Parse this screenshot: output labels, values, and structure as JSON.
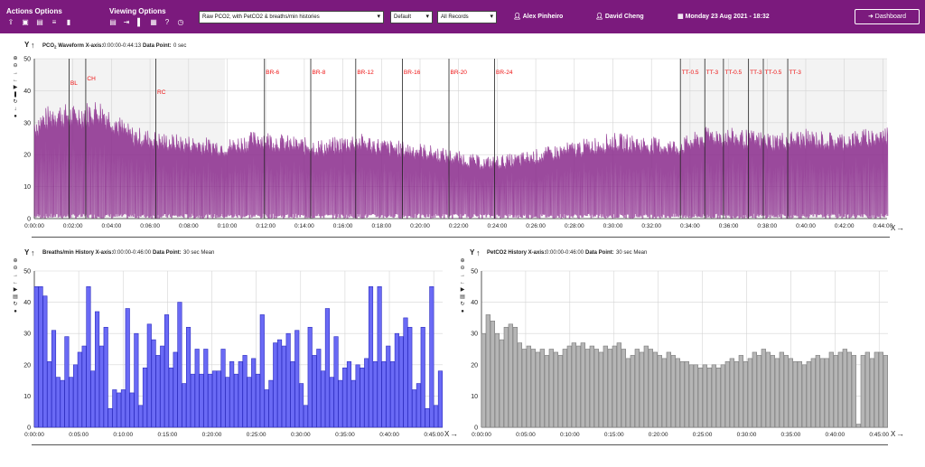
{
  "topbar": {
    "actions_label": "Actions Options",
    "viewing_label": "Viewing Options",
    "action_icons": [
      "upload-icon",
      "save-icon",
      "document-icon",
      "sliders-icon",
      "bookmark-icon"
    ],
    "viewing_icons": [
      "file-icon",
      "arrow-in-icon",
      "bar-icon",
      "grid-icon",
      "help-icon",
      "clock-icon"
    ],
    "view_select": "Raw PCO2, with PetCO2 & breaths/min histories",
    "mode_select": "Default",
    "records_select": "All Records",
    "patient": "Alex Pinheiro",
    "clinician": "David Cheng",
    "date": "Monday 23 Aug 2021 - 18:32",
    "dashboard_label": "Dashboard",
    "accent": "#7b1a7d"
  },
  "waveform": {
    "title_prefix": "PCO",
    "title_sub": "2",
    "title_rest": " Waveform X-axis:",
    "range": "0:00:00-0:44:13",
    "dp_label": "Data Point:",
    "dp_value": "0 sec",
    "y_label": "Y",
    "x_label": "X"
  },
  "breaths": {
    "title": "Breaths/min History X-axis:",
    "range": "0:00:00-0:46:00",
    "dp_label": "Data Point:",
    "dp_value": "30 sec Mean",
    "y_label": "Y",
    "x_label": "X"
  },
  "petco2": {
    "title": "PetCO2 History X-axis:",
    "range": "0:00:00-0:46:00",
    "dp_label": "Data Point:",
    "dp_value": "30 sec Mean",
    "y_label": "Y",
    "x_label": "X"
  },
  "chart_data": [
    {
      "type": "line",
      "title": "PCO2 Waveform",
      "ylim": [
        0,
        50
      ],
      "yticks": [
        0,
        10,
        20,
        30,
        40,
        50
      ],
      "xlim_sec": [
        0,
        2653
      ],
      "xticks": [
        "0:00:00",
        "0:02:00",
        "0:04:00",
        "0:06:00",
        "0:08:00",
        "0:10:00",
        "0:12:00",
        "0:14:00",
        "0:16:00",
        "0:18:00",
        "0:20:00",
        "0:22:00",
        "0:24:00",
        "0:26:00",
        "0:28:00",
        "0:30:00",
        "0:32:00",
        "0:34:00",
        "0:36:00",
        "0:38:00",
        "0:40:00",
        "0:42:00",
        "0:44:00"
      ],
      "color": "#8a2a8c",
      "grid": true,
      "markers": [
        {
          "label": "BL",
          "t": 108
        },
        {
          "label": "CH",
          "t": 160
        },
        {
          "label": "RC",
          "t": 378
        },
        {
          "label": "BR-6",
          "t": 716
        },
        {
          "label": "BR-8",
          "t": 860
        },
        {
          "label": "BR-12",
          "t": 1000
        },
        {
          "label": "BR-16",
          "t": 1145
        },
        {
          "label": "BR-20",
          "t": 1290
        },
        {
          "label": "BR-24",
          "t": 1432
        },
        {
          "label": "TT-0.5",
          "t": 2010
        },
        {
          "label": "TT-3",
          "t": 2086
        },
        {
          "label": "TT-0.5",
          "t": 2144
        },
        {
          "label": "TT-3",
          "t": 2222
        },
        {
          "label": "TT-0.5",
          "t": 2268
        },
        {
          "label": "TT-3",
          "t": 2344
        }
      ],
      "shaded_regions": [
        [
          0,
          593
        ],
        [
          2012,
          2653
        ]
      ],
      "envelope": [
        [
          0,
          30
        ],
        [
          60,
          34
        ],
        [
          120,
          33
        ],
        [
          200,
          35
        ],
        [
          300,
          27
        ],
        [
          400,
          25
        ],
        [
          500,
          24
        ],
        [
          593,
          23
        ],
        [
          700,
          26
        ],
        [
          800,
          24
        ],
        [
          900,
          23
        ],
        [
          1000,
          25
        ],
        [
          1100,
          23
        ],
        [
          1200,
          22
        ],
        [
          1300,
          20
        ],
        [
          1400,
          18
        ],
        [
          1500,
          19
        ],
        [
          1600,
          21
        ],
        [
          1700,
          23
        ],
        [
          1800,
          25
        ],
        [
          1900,
          24
        ],
        [
          2000,
          23
        ],
        [
          2100,
          27
        ],
        [
          2200,
          26
        ],
        [
          2300,
          25
        ],
        [
          2400,
          26
        ],
        [
          2500,
          25
        ],
        [
          2653,
          27
        ]
      ]
    },
    {
      "type": "bar",
      "title": "Breaths/min History",
      "ylim": [
        0,
        50
      ],
      "yticks": [
        0,
        10,
        20,
        30,
        40,
        50
      ],
      "xticks": [
        "0:00:00",
        "0:05:00",
        "0:10:00",
        "0:15:00",
        "0:20:00",
        "0:25:00",
        "0:30:00",
        "0:35:00",
        "0:40:00",
        "0:45:00"
      ],
      "bin_sec": 30,
      "color": "#6a6af5",
      "values": [
        45,
        45,
        42,
        21,
        31,
        16,
        15,
        29,
        16,
        20,
        24,
        26,
        45,
        18,
        37,
        26,
        32,
        6,
        12,
        11,
        12,
        38,
        11,
        30,
        7,
        19,
        33,
        28,
        23,
        26,
        36,
        19,
        24,
        40,
        14,
        32,
        17,
        25,
        17,
        25,
        17,
        18,
        18,
        25,
        16,
        21,
        17,
        21,
        23,
        16,
        22,
        17,
        36,
        12,
        15,
        27,
        28,
        26,
        30,
        21,
        31,
        14,
        7,
        32,
        23,
        25,
        18,
        38,
        16,
        29,
        15,
        19,
        21,
        15,
        20,
        19,
        22,
        45,
        21,
        45,
        21,
        26,
        21,
        30,
        29,
        35,
        32,
        12,
        14,
        32,
        6,
        45,
        7,
        18
      ]
    },
    {
      "type": "bar",
      "title": "PetCO2 History",
      "ylim": [
        0,
        50
      ],
      "yticks": [
        0,
        10,
        20,
        30,
        40,
        50
      ],
      "xticks": [
        "0:00:00",
        "0:05:00",
        "0:10:00",
        "0:15:00",
        "0:20:00",
        "0:25:00",
        "0:30:00",
        "0:35:00",
        "0:40:00",
        "0:45:00"
      ],
      "bin_sec": 30,
      "color": "#b5b5b5",
      "values": [
        30,
        36,
        34,
        30,
        28,
        32,
        33,
        32,
        27,
        25,
        26,
        25,
        24,
        25,
        23,
        25,
        24,
        23,
        25,
        26,
        27,
        26,
        27,
        25,
        26,
        25,
        24,
        26,
        25,
        26,
        27,
        25,
        22,
        23,
        25,
        24,
        26,
        25,
        24,
        23,
        22,
        24,
        23,
        22,
        21,
        21,
        20,
        20,
        19,
        20,
        19,
        20,
        19,
        20,
        21,
        22,
        21,
        23,
        21,
        22,
        24,
        23,
        25,
        24,
        23,
        22,
        24,
        23,
        22,
        21,
        21,
        20,
        21,
        22,
        23,
        22,
        22,
        24,
        23,
        24,
        25,
        24,
        23,
        1,
        23,
        24,
        22,
        24,
        24,
        23
      ]
    }
  ]
}
